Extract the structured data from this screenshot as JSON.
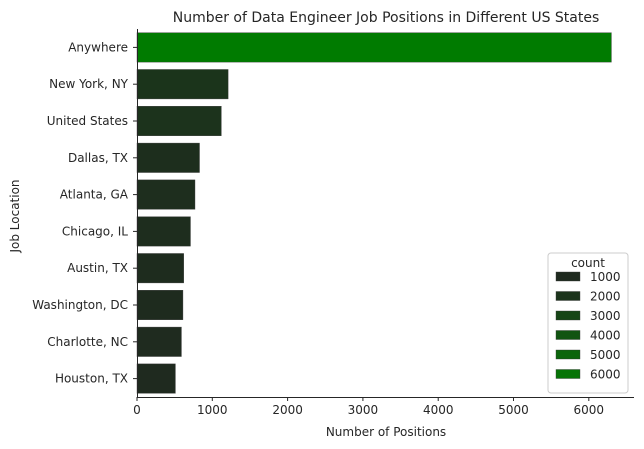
{
  "chart_data": {
    "type": "bar",
    "orientation": "horizontal",
    "title": "Number of Data Engineer Job Positions in Different US States",
    "xlabel": "Number of Positions",
    "ylabel": "Job Location",
    "xlim": [
      0,
      6600
    ],
    "xticks": [
      "0",
      "1000",
      "2000",
      "3000",
      "4000",
      "5000",
      "6000"
    ],
    "categories": [
      "Anywhere",
      "New York, NY",
      "United States",
      "Dallas, TX",
      "Atlanta, GA",
      "Chicago, IL",
      "Austin, TX",
      "Washington, DC",
      "Charlotte, NC",
      "Houston, TX"
    ],
    "values": [
      6300,
      1210,
      1120,
      830,
      770,
      710,
      620,
      610,
      590,
      510
    ],
    "grid": false,
    "legend": {
      "title": "count",
      "placement": "lower-right",
      "entries": [
        {
          "label": "1000",
          "color": "#1f2a1f"
        },
        {
          "label": "2000",
          "color": "#1c341c"
        },
        {
          "label": "3000",
          "color": "#164516"
        },
        {
          "label": "4000",
          "color": "#115411"
        },
        {
          "label": "5000",
          "color": "#0b650b"
        },
        {
          "label": "6000",
          "color": "#067406"
        }
      ]
    },
    "colors": {
      "low": "#1f2a1f",
      "high": "#007b00",
      "axis": "#262626"
    }
  }
}
